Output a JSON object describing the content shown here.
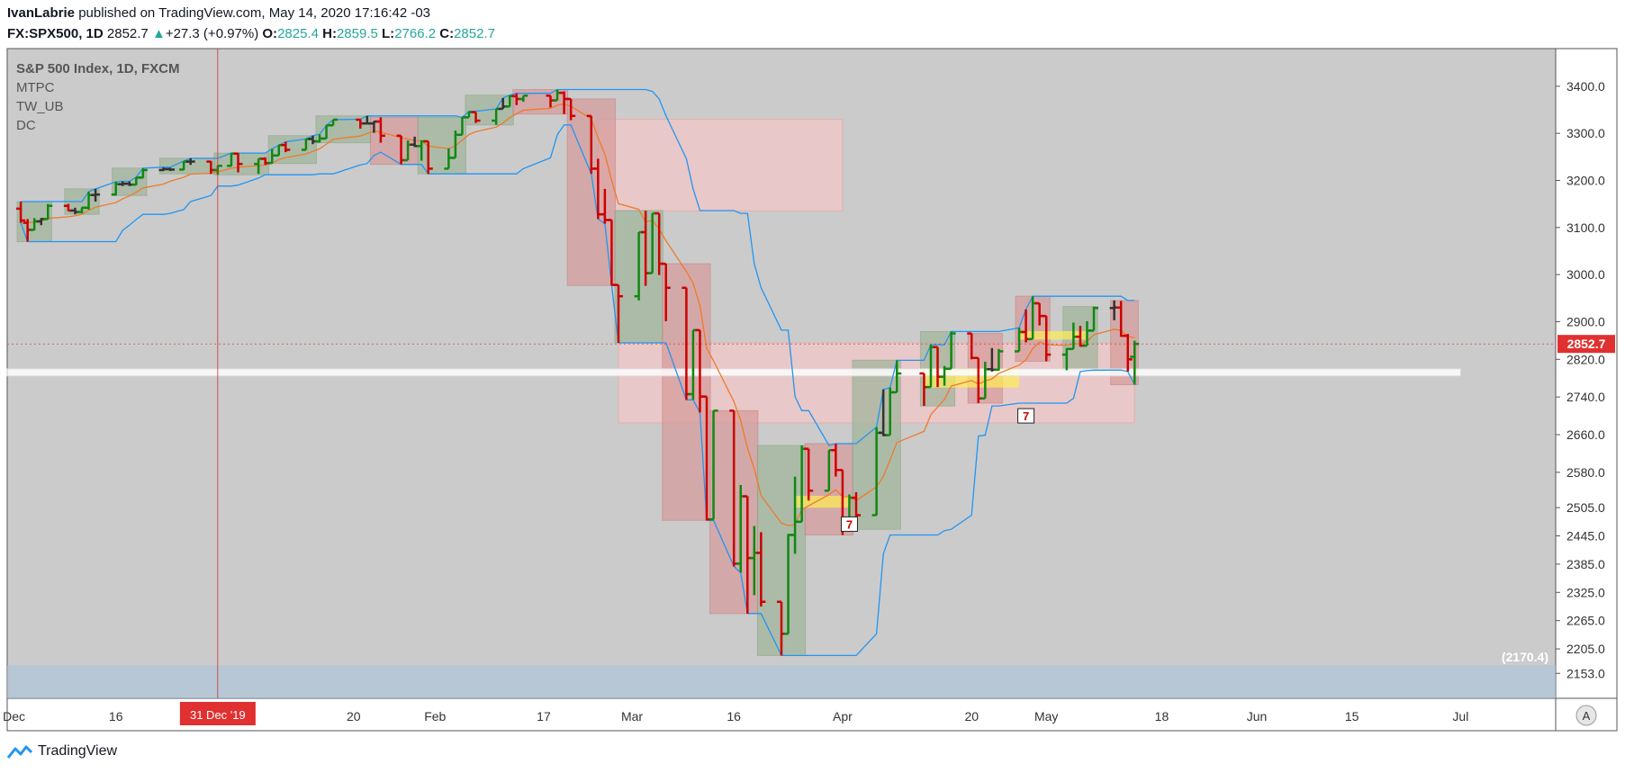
{
  "header": {
    "author": "IvanLabrie",
    "published_text": "published on TradingView.com, May 14, 2020 17:16:42 -03",
    "symbol": "FX:SPX500, 1D",
    "last": "2852.7",
    "change": "+27.3 (+0.97%)",
    "o_label": "O:",
    "o_value": "2825.4",
    "h_label": "H:",
    "h_value": "2859.5",
    "l_label": "L:",
    "l_value": "2766.2",
    "c_label": "C:",
    "c_value": "2852.7"
  },
  "legend": {
    "title": "S&P 500 Index, 1D, FXCM",
    "indicators": [
      "MTPC",
      "TW_UB",
      "DC"
    ]
  },
  "price_tag": "2852.7",
  "crosshair_date": "31 Dec '19",
  "bottom_band_label": "(2170.4)",
  "markers": [
    "7",
    "7"
  ],
  "auto_scale_button": "A",
  "brand": "TradingView",
  "colors": {
    "background": "#cbcbcb",
    "up_bar": "#118811",
    "down_bar": "#cc0000",
    "neutral_bar": "#333333",
    "ema_line": "#ef7a2a",
    "donchian": "#2196f3",
    "price_tag": "#e03030"
  },
  "chart_data": {
    "type": "ohlc",
    "title": "S&P 500 Index, 1D, FXCM",
    "x_ticks": [
      "Dec",
      "16",
      "31 Dec '19",
      "20",
      "Feb",
      "17",
      "Mar",
      "16",
      "Apr",
      "20",
      "May",
      "18",
      "Jun",
      "15",
      "Jul"
    ],
    "y_ticks": [
      3400.0,
      3300.0,
      3200.0,
      3100.0,
      3000.0,
      2900.0,
      2820.0,
      2740.0,
      2660.0,
      2580.0,
      2505.0,
      2445.0,
      2385.0,
      2325.0,
      2265.0,
      2205.0,
      2153.0
    ],
    "y_range": [
      2100,
      3480
    ],
    "x_range": [
      "2019-11-30",
      "2020-07-15"
    ],
    "last_price": 2852.7,
    "bars": [
      [
        "2019-12-02",
        3140,
        3155,
        3110,
        3115
      ],
      [
        "2019-12-03",
        3110,
        3118,
        3070,
        3095
      ],
      [
        "2019-12-04",
        3095,
        3120,
        3094,
        3113
      ],
      [
        "2019-12-05",
        3113,
        3120,
        3105,
        3118
      ],
      [
        "2019-12-06",
        3118,
        3150,
        3117,
        3146
      ],
      [
        "2019-12-09",
        3146,
        3150,
        3135,
        3136
      ],
      [
        "2019-12-10",
        3136,
        3142,
        3128,
        3133
      ],
      [
        "2019-12-11",
        3133,
        3143,
        3130,
        3142
      ],
      [
        "2019-12-12",
        3142,
        3176,
        3138,
        3169
      ],
      [
        "2019-12-13",
        3169,
        3182,
        3155,
        3170
      ],
      [
        "2019-12-16",
        3170,
        3197,
        3168,
        3192
      ],
      [
        "2019-12-17",
        3192,
        3198,
        3188,
        3193
      ],
      [
        "2019-12-18",
        3193,
        3198,
        3188,
        3191
      ],
      [
        "2019-12-19",
        3191,
        3207,
        3190,
        3206
      ],
      [
        "2019-12-20",
        3206,
        3226,
        3205,
        3222
      ],
      [
        "2019-12-23",
        3222,
        3228,
        3220,
        3224
      ],
      [
        "2019-12-24",
        3224,
        3227,
        3220,
        3223
      ],
      [
        "2019-12-26",
        3223,
        3241,
        3222,
        3240
      ],
      [
        "2019-12-27",
        3240,
        3247,
        3233,
        3240
      ],
      [
        "2019-12-30",
        3240,
        3241,
        3214,
        3222
      ],
      [
        "2019-12-31",
        3222,
        3232,
        3212,
        3231
      ],
      [
        "2020-01-02",
        3231,
        3258,
        3230,
        3257
      ],
      [
        "2020-01-03",
        3257,
        3258,
        3217,
        3235
      ],
      [
        "2020-01-06",
        3235,
        3246,
        3214,
        3246
      ],
      [
        "2020-01-07",
        3246,
        3249,
        3233,
        3237
      ],
      [
        "2020-01-08",
        3237,
        3267,
        3236,
        3253
      ],
      [
        "2020-01-09",
        3253,
        3275,
        3265,
        3275
      ],
      [
        "2020-01-10",
        3275,
        3282,
        3260,
        3265
      ],
      [
        "2020-01-13",
        3265,
        3288,
        3265,
        3288
      ],
      [
        "2020-01-14",
        3288,
        3295,
        3277,
        3283
      ],
      [
        "2020-01-15",
        3283,
        3298,
        3280,
        3289
      ],
      [
        "2020-01-16",
        3289,
        3317,
        3292,
        3317
      ],
      [
        "2020-01-17",
        3317,
        3329,
        3318,
        3329
      ],
      [
        "2020-01-21",
        3329,
        3330,
        3310,
        3321
      ],
      [
        "2020-01-22",
        3321,
        3337,
        3320,
        3321
      ],
      [
        "2020-01-23",
        3321,
        3326,
        3301,
        3325
      ],
      [
        "2020-01-24",
        3325,
        3334,
        3280,
        3295
      ],
      [
        "2020-01-27",
        3295,
        3258,
        3234,
        3243
      ],
      [
        "2020-01-28",
        3243,
        3285,
        3245,
        3276
      ],
      [
        "2020-01-29",
        3276,
        3293,
        3271,
        3273
      ],
      [
        "2020-01-30",
        3273,
        3285,
        3242,
        3283
      ],
      [
        "2020-01-31",
        3283,
        3282,
        3214,
        3225
      ],
      [
        "2020-02-03",
        3225,
        3268,
        3235,
        3248
      ],
      [
        "2020-02-04",
        3248,
        3306,
        3280,
        3297
      ],
      [
        "2020-02-05",
        3297,
        3333,
        3304,
        3334
      ],
      [
        "2020-02-06",
        3334,
        3347,
        3334,
        3345
      ],
      [
        "2020-02-07",
        3345,
        3342,
        3322,
        3327
      ],
      [
        "2020-02-10",
        3327,
        3352,
        3318,
        3352
      ],
      [
        "2020-02-11",
        3352,
        3375,
        3352,
        3357
      ],
      [
        "2020-02-12",
        3357,
        3381,
        3366,
        3379
      ],
      [
        "2020-02-13",
        3379,
        3385,
        3360,
        3373
      ],
      [
        "2020-02-14",
        3373,
        3380,
        3367,
        3380
      ],
      [
        "2020-02-18",
        3380,
        3375,
        3355,
        3370
      ],
      [
        "2020-02-19",
        3370,
        3393,
        3378,
        3386
      ],
      [
        "2020-02-20",
        3386,
        3389,
        3341,
        3373
      ],
      [
        "2020-02-21",
        3373,
        3360,
        3328,
        3337
      ],
      [
        "2020-02-24",
        3337,
        3259,
        3214,
        3225
      ],
      [
        "2020-02-25",
        3225,
        3246,
        3118,
        3128
      ],
      [
        "2020-02-26",
        3128,
        3182,
        3108,
        3116
      ],
      [
        "2020-02-27",
        3116,
        3097,
        2977,
        2978
      ],
      [
        "2020-02-28",
        2978,
        2960,
        2855,
        2954
      ],
      [
        "2020-03-02",
        2954,
        3090,
        2945,
        3090
      ],
      [
        "2020-03-03",
        3090,
        3136,
        2976,
        3003
      ],
      [
        "2020-03-04",
        3003,
        3130,
        3034,
        3130
      ],
      [
        "2020-03-05",
        3130,
        3083,
        2999,
        3023
      ],
      [
        "2020-03-06",
        3023,
        2985,
        2901,
        2972
      ],
      [
        "2020-03-09",
        2972,
        2863,
        2734,
        2746
      ],
      [
        "2020-03-10",
        2746,
        2882,
        2734,
        2882
      ],
      [
        "2020-03-11",
        2882,
        2825,
        2707,
        2741
      ],
      [
        "2020-03-12",
        2741,
        2660,
        2478,
        2480
      ],
      [
        "2020-03-13",
        2480,
        2711,
        2492,
        2711
      ],
      [
        "2020-03-16",
        2711,
        2562,
        2380,
        2386
      ],
      [
        "2020-03-17",
        2386,
        2553,
        2367,
        2529
      ],
      [
        "2020-03-18",
        2529,
        2453,
        2280,
        2398
      ],
      [
        "2020-03-19",
        2398,
        2466,
        2319,
        2409
      ],
      [
        "2020-03-20",
        2409,
        2453,
        2295,
        2305
      ],
      [
        "2020-03-23",
        2305,
        2300,
        2191,
        2237
      ],
      [
        "2020-03-24",
        2237,
        2449,
        2345,
        2447
      ],
      [
        "2020-03-25",
        2447,
        2571,
        2407,
        2475
      ],
      [
        "2020-03-26",
        2475,
        2637,
        2498,
        2630
      ],
      [
        "2020-03-27",
        2630,
        2615,
        2520,
        2541
      ],
      [
        "2020-03-30",
        2541,
        2627,
        2545,
        2627
      ],
      [
        "2020-03-31",
        2627,
        2641,
        2571,
        2585
      ],
      [
        "2020-04-01",
        2585,
        2522,
        2447,
        2470
      ],
      [
        "2020-04-02",
        2470,
        2533,
        2456,
        2526
      ],
      [
        "2020-04-03",
        2526,
        2538,
        2459,
        2489
      ],
      [
        "2020-04-06",
        2489,
        2676,
        2574,
        2664
      ],
      [
        "2020-04-07",
        2664,
        2756,
        2657,
        2659
      ],
      [
        "2020-04-08",
        2659,
        2760,
        2663,
        2750
      ],
      [
        "2020-04-09",
        2750,
        2818,
        2762,
        2790
      ],
      [
        "2020-04-13",
        2790,
        2782,
        2721,
        2761
      ],
      [
        "2020-04-14",
        2761,
        2851,
        2805,
        2846
      ],
      [
        "2020-04-15",
        2846,
        2801,
        2761,
        2783
      ],
      [
        "2020-04-16",
        2783,
        2806,
        2764,
        2800
      ],
      [
        "2020-04-17",
        2800,
        2879,
        2830,
        2875
      ],
      [
        "2020-04-20",
        2875,
        2868,
        2820,
        2823
      ],
      [
        "2020-04-21",
        2823,
        2785,
        2727,
        2737
      ],
      [
        "2020-04-22",
        2737,
        2815,
        2775,
        2799
      ],
      [
        "2020-04-23",
        2799,
        2844,
        2794,
        2798
      ],
      [
        "2020-04-24",
        2798,
        2842,
        2796,
        2837
      ],
      [
        "2020-04-27",
        2837,
        2887,
        2862,
        2878
      ],
      [
        "2020-04-28",
        2878,
        2926,
        2856,
        2863
      ],
      [
        "2020-04-29",
        2863,
        2954,
        2912,
        2939
      ],
      [
        "2020-04-30",
        2939,
        2930,
        2892,
        2912
      ],
      [
        "2020-05-01",
        2912,
        2869,
        2816,
        2830
      ],
      [
        "2020-05-04",
        2830,
        2844,
        2797,
        2842
      ],
      [
        "2020-05-05",
        2842,
        2898,
        2853,
        2868
      ],
      [
        "2020-05-06",
        2868,
        2891,
        2847,
        2849
      ],
      [
        "2020-05-07",
        2849,
        2901,
        2873,
        2881
      ],
      [
        "2020-05-08",
        2881,
        2932,
        2906,
        2929
      ],
      [
        "2020-05-11",
        2929,
        2945,
        2903,
        2930
      ],
      [
        "2020-05-12",
        2930,
        2944,
        2868,
        2870
      ],
      [
        "2020-05-13",
        2870,
        2874,
        2794,
        2820
      ],
      [
        "2020-05-14",
        2825.4,
        2859.5,
        2766.2,
        2852.7
      ]
    ]
  }
}
